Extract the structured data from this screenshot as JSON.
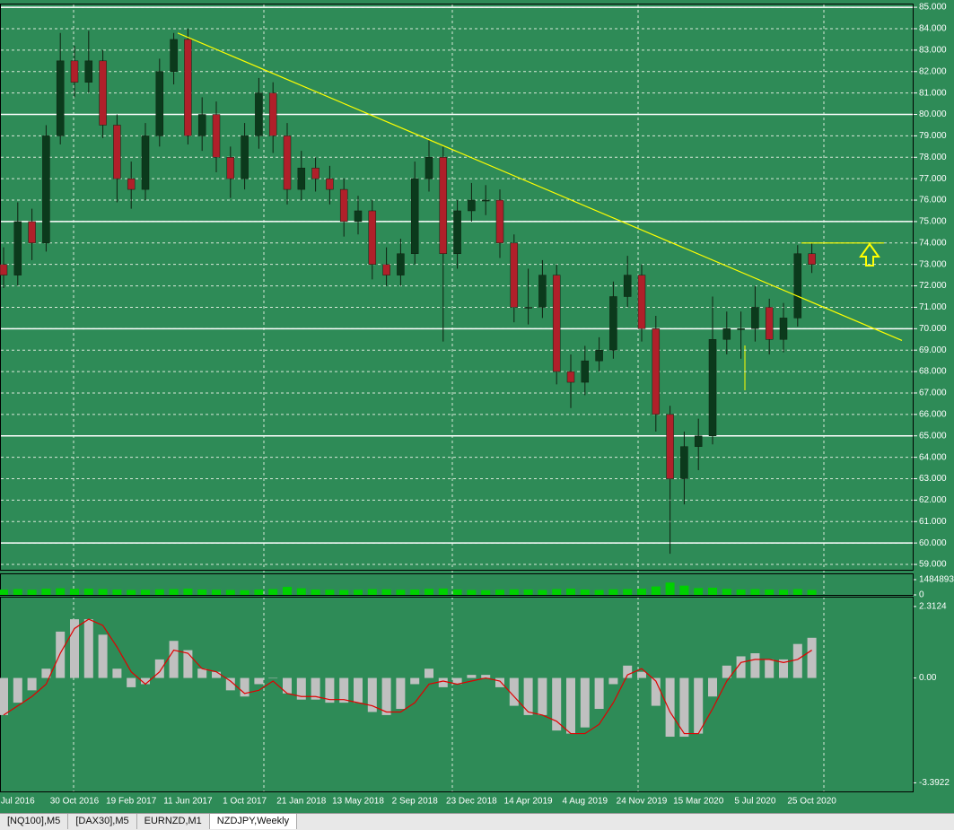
{
  "chart_data": {
    "type": "candlestick",
    "categories": [
      null,
      "Jul 2016",
      null,
      null,
      null,
      "30 Oct 2016",
      null,
      null,
      null,
      "19 Feb 2017",
      null,
      null,
      null,
      "11 Jun 2017",
      null,
      null,
      null,
      "1 Oct 2017",
      null,
      null,
      null,
      "21 Jan 2018",
      null,
      null,
      null,
      "13 May 2018",
      null,
      null,
      null,
      "2 Sep 2018",
      null,
      null,
      null,
      "23 Dec 2018",
      null,
      null,
      null,
      "14 Apr 2019",
      null,
      null,
      null,
      "4 Aug 2019",
      null,
      null,
      null,
      "24 Nov 2019",
      null,
      null,
      null,
      "15 Mar 2020",
      null,
      null,
      null,
      "5 Jul 2020",
      null,
      null,
      null,
      "25 Oct 2020"
    ],
    "candles": [
      [
        73,
        73.8,
        71.9,
        72.5
      ],
      [
        72.5,
        75.9,
        72.0,
        75
      ],
      [
        75,
        75.6,
        73.2,
        74
      ],
      [
        74,
        79.5,
        73.6,
        79
      ],
      [
        79,
        83.8,
        78.6,
        82.5
      ],
      [
        82.5,
        83.2,
        80.8,
        81.5
      ],
      [
        81.5,
        83.9,
        81.0,
        82.5
      ],
      [
        82.5,
        83.0,
        78.9,
        79.5
      ],
      [
        79.5,
        80.0,
        75.9,
        77
      ],
      [
        77,
        77.8,
        75.6,
        76.5
      ],
      [
        76.5,
        79.6,
        76.0,
        79
      ],
      [
        79,
        82.6,
        78.5,
        82
      ],
      [
        82,
        83.8,
        81.4,
        83.5
      ],
      [
        83.5,
        84.0,
        78.6,
        79
      ],
      [
        79,
        80.8,
        78.3,
        80
      ],
      [
        80,
        80.6,
        77.3,
        78
      ],
      [
        78,
        78.5,
        76.1,
        77
      ],
      [
        77,
        79.6,
        76.5,
        79
      ],
      [
        79,
        81.7,
        78.4,
        81
      ],
      [
        81,
        81.5,
        78.2,
        79
      ],
      [
        79,
        79.6,
        75.8,
        76.5
      ],
      [
        76.5,
        78.3,
        76.0,
        77.5
      ],
      [
        77.5,
        78.0,
        76.4,
        77
      ],
      [
        77,
        77.6,
        75.8,
        76.5
      ],
      [
        76.5,
        77.0,
        74.3,
        75
      ],
      [
        75,
        76.2,
        74.4,
        75.5
      ],
      [
        75.5,
        76.0,
        72.3,
        73
      ],
      [
        73,
        73.8,
        72.0,
        72.5
      ],
      [
        72.5,
        74.2,
        72.0,
        73.5
      ],
      [
        73.5,
        77.8,
        73.0,
        77
      ],
      [
        77,
        78.8,
        76.4,
        78
      ],
      [
        78,
        78.5,
        69.4,
        73.5
      ],
      [
        73.5,
        76.0,
        72.8,
        75.5
      ],
      [
        75.5,
        76.8,
        75.0,
        76
      ],
      [
        76,
        76.7,
        75.3,
        76
      ],
      [
        76,
        76.5,
        73.3,
        74
      ],
      [
        74,
        74.4,
        70.3,
        71
      ],
      [
        71,
        72.8,
        70.2,
        71
      ],
      [
        71,
        73.2,
        70.5,
        72.5
      ],
      [
        72.5,
        73.0,
        67.4,
        68
      ],
      [
        68,
        68.8,
        66.3,
        67.5
      ],
      [
        67.5,
        69.2,
        66.9,
        68.5
      ],
      [
        68.5,
        69.6,
        68.0,
        69
      ],
      [
        69,
        72.2,
        68.6,
        71.5
      ],
      [
        71.5,
        73.4,
        71.0,
        72.5
      ],
      [
        72.5,
        73.0,
        69.4,
        70
      ],
      [
        70,
        70.6,
        65.2,
        66
      ],
      [
        66,
        66.4,
        59.5,
        63
      ],
      [
        63,
        65.2,
        61.8,
        64.5
      ],
      [
        64.5,
        65.8,
        63.4,
        65
      ],
      [
        65,
        71.5,
        64.6,
        69.5
      ],
      [
        69.5,
        70.8,
        68.8,
        70
      ],
      [
        70,
        70.8,
        68.6,
        70
      ],
      [
        70,
        72.0,
        69.4,
        71
      ],
      [
        71,
        71.4,
        68.8,
        69.5
      ],
      [
        69.5,
        71.2,
        68.9,
        70.5
      ],
      [
        70.5,
        73.9,
        70.1,
        73.5
      ],
      [
        73.5,
        74.0,
        72.6,
        73
      ]
    ],
    "up_color": "#0b3a1c",
    "down_color": "#b0202a",
    "wick_color": "#102010",
    "ylim": [
      58.75,
      85.13
    ],
    "yticks": [
      {
        "value": 59,
        "label": "59.000"
      },
      {
        "value": 60,
        "label": "60.000"
      },
      {
        "value": 61,
        "label": "61.000"
      },
      {
        "value": 62,
        "label": "62.000"
      },
      {
        "value": 63,
        "label": "63.000"
      },
      {
        "value": 64,
        "label": "64.000"
      },
      {
        "value": 65,
        "label": "65.000"
      },
      {
        "value": 66,
        "label": "66.000"
      },
      {
        "value": 67,
        "label": "67.000"
      },
      {
        "value": 68,
        "label": "68.000"
      },
      {
        "value": 69,
        "label": "69.000"
      },
      {
        "value": 70,
        "label": "70.000"
      },
      {
        "value": 71,
        "label": "71.000"
      },
      {
        "value": 72,
        "label": "72.000"
      },
      {
        "value": 73,
        "label": "73.000"
      },
      {
        "value": 74,
        "label": "74.000"
      },
      {
        "value": 75,
        "label": "75.000"
      },
      {
        "value": 76,
        "label": "76.000"
      },
      {
        "value": 77,
        "label": "77.000"
      },
      {
        "value": 78,
        "label": "78.000"
      },
      {
        "value": 79,
        "label": "79.000"
      },
      {
        "value": 80,
        "label": "80.000"
      },
      {
        "value": 81,
        "label": "81.000"
      },
      {
        "value": 82,
        "label": "82.000"
      },
      {
        "value": 83,
        "label": "83.000"
      },
      {
        "value": 84,
        "label": "84.000"
      },
      {
        "value": 85,
        "label": "85.000"
      }
    ],
    "grid": true,
    "levels": [
      60,
      65,
      70,
      75,
      80,
      85
    ],
    "trendline": [
      83.8,
      69.45
    ],
    "resistance": 74,
    "volume": {
      "values": [
        520000,
        560000,
        500000,
        600000,
        640000,
        580000,
        600000,
        560000,
        520000,
        480000,
        500000,
        540000,
        560000,
        600000,
        520000,
        500000,
        480000,
        460000,
        520000,
        560000,
        780000,
        640000,
        520000,
        500000,
        480000,
        500000,
        560000,
        540000,
        500000,
        520000,
        580000,
        620000,
        520000,
        480000,
        460000,
        500000,
        540000,
        520000,
        480000,
        560000,
        600000,
        520000,
        480000,
        540000,
        560000,
        600000,
        820000,
        1200000,
        900000,
        660000,
        700000,
        580000,
        520000,
        560000,
        520000,
        500000,
        560000,
        480000
      ],
      "ylim": [
        0,
        1484893
      ],
      "yticks": [
        1484893,
        0
      ],
      "color": "#00d000"
    },
    "macd": {
      "histogram": [
        -1.2,
        -0.8,
        -0.4,
        0.3,
        1.5,
        1.9,
        1.9,
        1.4,
        0.3,
        -0.3,
        -0.2,
        0.6,
        1.2,
        0.9,
        0.3,
        0.2,
        -0.4,
        -0.6,
        -0.2,
        0.0,
        -0.5,
        -0.7,
        -0.7,
        -0.8,
        -0.8,
        -0.8,
        -1.1,
        -1.2,
        -1.0,
        -0.2,
        0.3,
        -0.3,
        -0.2,
        0.1,
        0.1,
        -0.3,
        -0.9,
        -1.2,
        -1.2,
        -1.7,
        -1.8,
        -1.6,
        -1.0,
        -0.2,
        0.4,
        0.2,
        -0.9,
        -1.9,
        -1.9,
        -1.8,
        -0.6,
        0.4,
        0.7,
        0.8,
        0.6,
        0.6,
        1.1,
        1.3
      ],
      "signal": [
        -1.2,
        -0.9,
        -0.6,
        -0.2,
        0.8,
        1.6,
        1.9,
        1.7,
        1.0,
        0.2,
        -0.2,
        0.2,
        0.9,
        0.8,
        0.3,
        0.2,
        -0.1,
        -0.5,
        -0.4,
        -0.1,
        -0.5,
        -0.6,
        -0.6,
        -0.7,
        -0.7,
        -0.8,
        -0.9,
        -1.1,
        -1.1,
        -0.8,
        -0.2,
        -0.1,
        -0.2,
        -0.1,
        0.0,
        -0.1,
        -0.6,
        -1.1,
        -1.2,
        -1.4,
        -1.8,
        -1.8,
        -1.5,
        -0.8,
        0.1,
        0.3,
        -0.1,
        -1.1,
        -1.8,
        -1.8,
        -1.0,
        -0.1,
        0.5,
        0.6,
        0.6,
        0.5,
        0.6,
        0.9
      ],
      "ylim": [
        -3.67,
        2.6
      ],
      "yticks": [
        2.3124,
        {
          "value": 0,
          "label": "0.00"
        },
        -3.3922
      ],
      "hist_color": "#c0c0c0",
      "signal_color": "#e00000"
    }
  },
  "tabs": [
    "[NQ100],M5",
    "[DAX30],M5",
    "EURNZD,M1",
    "NZDJPY,Weekly"
  ]
}
